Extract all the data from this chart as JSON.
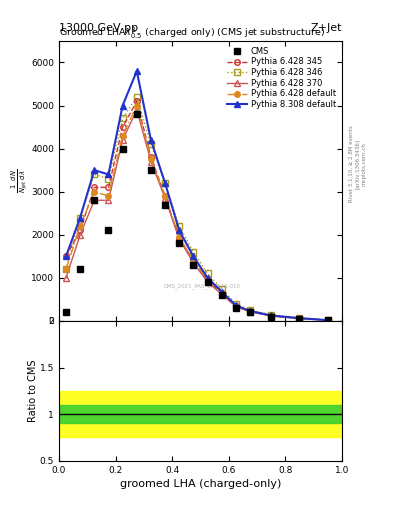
{
  "title_top": "13000 GeV pp",
  "title_right": "Z+Jet",
  "plot_title": "Groomed LHA$\\lambda^{1}_{0.5}$ (charged only) (CMS jet substructure)",
  "xlabel": "groomed LHA (charged-only)",
  "ylabel_main": "$\\frac{1}{N_{jet}} \\frac{d N}{d \\lambda}$",
  "ylabel_ratio": "Ratio to CMS",
  "watermark": "CMS_2021_PAS_SMP-20-010",
  "right_label_1": "Rivet 3.1.10, ≥ 2.8M events",
  "right_label_2": "[arXiv:1306.3436]",
  "right_label_3": "mcplots.cern.ch",
  "color_345": "#cc3333",
  "color_346": "#aa9922",
  "color_370": "#cc5555",
  "color_def6": "#dd8822",
  "color_def8": "#2233cc",
  "ratio_green": [
    0.9,
    1.1
  ],
  "ratio_yellow": [
    0.75,
    1.25
  ],
  "ylim_main": [
    0,
    6500
  ],
  "ylim_ratio": [
    0.5,
    2.0
  ],
  "xlim": [
    0.0,
    1.0
  ],
  "x_centers": [
    0.025,
    0.075,
    0.125,
    0.175,
    0.225,
    0.275,
    0.325,
    0.375,
    0.425,
    0.475,
    0.525,
    0.575,
    0.625,
    0.675,
    0.75,
    0.85,
    0.95
  ],
  "cms": [
    200.0,
    1200.0,
    2800.0,
    2100.0,
    4000.0,
    4800.0,
    3500.0,
    2700.0,
    1800.0,
    1300.0,
    900.0,
    600.0,
    300.0,
    200.0,
    100.0,
    50.0,
    10.0
  ],
  "p345": [
    1500.0,
    2100.0,
    3100.0,
    3100.0,
    4500.0,
    5100.0,
    3800.0,
    2900.0,
    1900.0,
    1400.0,
    950.0,
    650.0,
    350.0,
    220.0,
    120.0,
    60.0,
    15.0
  ],
  "p346": [
    1200.0,
    2400.0,
    3400.0,
    3300.0,
    4700.0,
    5200.0,
    4100.0,
    3200.0,
    2200.0,
    1600.0,
    1100.0,
    750.0,
    400.0,
    250.0,
    140.0,
    70.0,
    18.0
  ],
  "p370": [
    1000.0,
    2000.0,
    2800.0,
    2800.0,
    4200.0,
    4900.0,
    3700.0,
    2850.0,
    1900.0,
    1350.0,
    900.0,
    620.0,
    330.0,
    210.0,
    110.0,
    55.0,
    14.0
  ],
  "pdef6": [
    1200.0,
    2200.0,
    3000.0,
    2900.0,
    4300.0,
    5000.0,
    3750.0,
    2900.0,
    1950.0,
    1400.0,
    950.0,
    650.0,
    350.0,
    220.0,
    120.0,
    60.0,
    15.0
  ],
  "pdef8": [
    1500.0,
    2400.0,
    3500.0,
    3400.0,
    5000.0,
    5800.0,
    4200.0,
    3200.0,
    2100.0,
    1500.0,
    1000.0,
    680.0,
    360.0,
    230.0,
    125.0,
    62.0,
    16.0
  ]
}
